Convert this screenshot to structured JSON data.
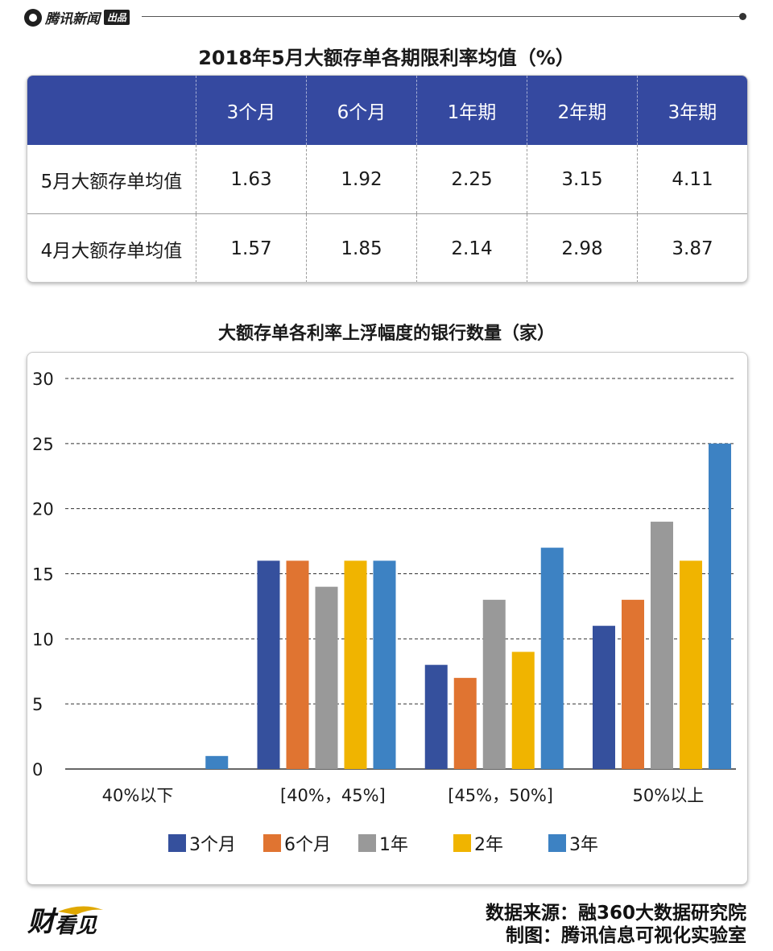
{
  "header": {
    "brand_text": "腾讯新闻",
    "brand_badge": "出品"
  },
  "table": {
    "title": "2018年5月大额存单各期限利率均值（%）",
    "columns": [
      "",
      "3个月",
      "6个月",
      "1年期",
      "2年期",
      "3年期"
    ],
    "rows": [
      {
        "label": "5月大额存单均值",
        "values": [
          "1.63",
          "1.92",
          "2.25",
          "3.15",
          "4.11"
        ]
      },
      {
        "label": "4月大额存单均值",
        "values": [
          "1.57",
          "1.85",
          "2.14",
          "2.98",
          "3.87"
        ]
      }
    ],
    "header_color": "#3549a0"
  },
  "chart_data": {
    "type": "bar",
    "title": "大额存单各利率上浮幅度的银行数量（家）",
    "categories": [
      "40%以下",
      "[40%，45%]",
      "[45%，50%]",
      "50%以上"
    ],
    "series": [
      {
        "name": "3个月",
        "color": "#35509d",
        "values": [
          0,
          16,
          8,
          11
        ]
      },
      {
        "name": "6个月",
        "color": "#e07431",
        "values": [
          0,
          16,
          7,
          13
        ]
      },
      {
        "name": "1年",
        "color": "#999999",
        "values": [
          0,
          14,
          13,
          19
        ]
      },
      {
        "name": "2年",
        "color": "#f0b400",
        "values": [
          0,
          16,
          9,
          16
        ]
      },
      {
        "name": "3年",
        "color": "#3d82c3",
        "values": [
          1,
          16,
          17,
          25
        ]
      }
    ],
    "yticks": [
      0,
      5,
      10,
      15,
      20,
      25,
      30
    ],
    "ylim": [
      0,
      30
    ],
    "grid": true,
    "legend": "bottom"
  },
  "footer": {
    "source_line": "数据来源：融360大数据研究院",
    "credit_line": "制图：腾讯信息可视化实验室"
  }
}
